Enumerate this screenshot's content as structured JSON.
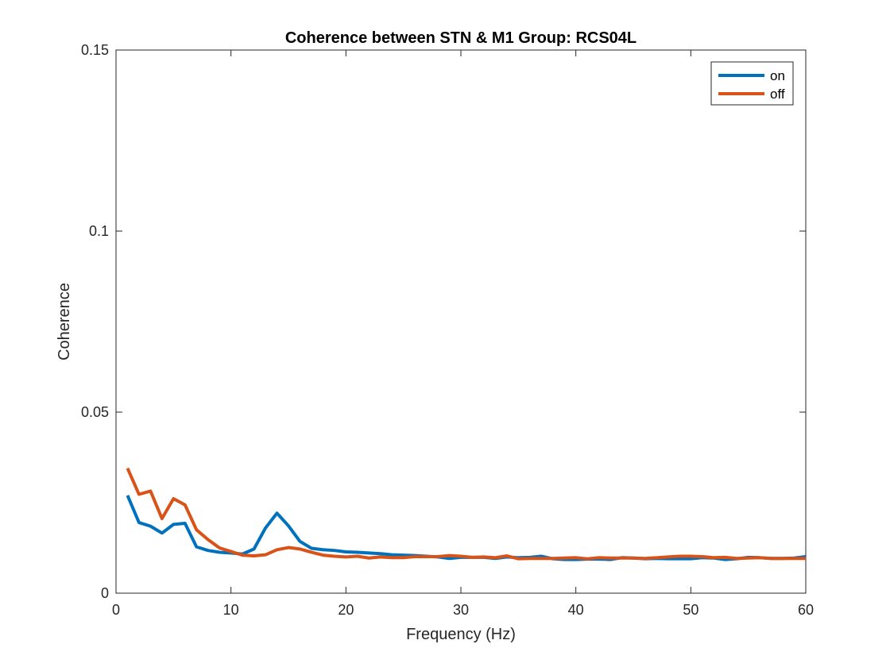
{
  "chart_data": {
    "type": "line",
    "title": "Coherence between STN & M1 Group: RCS04L",
    "xlabel": "Frequency (Hz)",
    "ylabel": "Coherence",
    "xlim": [
      0,
      60
    ],
    "ylim": [
      0,
      0.15
    ],
    "xticks": [
      0,
      10,
      20,
      30,
      40,
      50,
      60
    ],
    "xtick_labels": [
      "0",
      "10",
      "20",
      "30",
      "40",
      "50",
      "60"
    ],
    "yticks": [
      0,
      0.05,
      0.1,
      0.15
    ],
    "ytick_labels": [
      "0",
      "0.05",
      "0.1",
      "0.15"
    ],
    "grid": false,
    "legend_position": "top-right",
    "x": [
      1,
      2,
      3,
      4,
      5,
      6,
      7,
      8,
      9,
      10,
      11,
      12,
      13,
      14,
      15,
      16,
      17,
      18,
      19,
      20,
      21,
      22,
      23,
      24,
      25,
      26,
      27,
      28,
      29,
      30,
      31,
      32,
      33,
      34,
      35,
      36,
      37,
      38,
      39,
      40,
      41,
      42,
      43,
      44,
      45,
      46,
      47,
      48,
      49,
      50,
      51,
      52,
      53,
      54,
      55,
      56,
      57,
      58,
      59,
      60
    ],
    "series": [
      {
        "name": "on",
        "color": "#0072BD",
        "values": [
          0.027,
          0.0195,
          0.0185,
          0.0166,
          0.019,
          0.0193,
          0.0128,
          0.0118,
          0.0113,
          0.0111,
          0.0108,
          0.0122,
          0.018,
          0.0221,
          0.0186,
          0.0143,
          0.0124,
          0.012,
          0.0118,
          0.0114,
          0.0113,
          0.0111,
          0.0109,
          0.0106,
          0.0105,
          0.0104,
          0.0102,
          0.01,
          0.0096,
          0.0099,
          0.0099,
          0.0099,
          0.0096,
          0.01,
          0.0098,
          0.0099,
          0.0102,
          0.0095,
          0.0093,
          0.0093,
          0.0094,
          0.0094,
          0.0093,
          0.0098,
          0.0097,
          0.0095,
          0.0096,
          0.0095,
          0.0095,
          0.0095,
          0.0098,
          0.0097,
          0.0093,
          0.0095,
          0.0099,
          0.0098,
          0.0096,
          0.0096,
          0.0097,
          0.0101
        ]
      },
      {
        "name": "off",
        "color": "#D95319",
        "values": [
          0.0345,
          0.0273,
          0.0282,
          0.0206,
          0.0261,
          0.0244,
          0.0175,
          0.0148,
          0.0125,
          0.0115,
          0.0105,
          0.0103,
          0.0106,
          0.012,
          0.0126,
          0.0122,
          0.0113,
          0.0105,
          0.0102,
          0.01,
          0.0102,
          0.0097,
          0.01,
          0.0098,
          0.0098,
          0.0101,
          0.0101,
          0.0101,
          0.0104,
          0.0102,
          0.0099,
          0.01,
          0.0098,
          0.0103,
          0.0095,
          0.0096,
          0.0096,
          0.0096,
          0.0097,
          0.0098,
          0.0095,
          0.0098,
          0.0097,
          0.0097,
          0.0097,
          0.0096,
          0.0098,
          0.01,
          0.0102,
          0.0102,
          0.0101,
          0.0098,
          0.0099,
          0.0096,
          0.0097,
          0.0098,
          0.0096,
          0.0096,
          0.0096,
          0.0096
        ]
      }
    ]
  }
}
